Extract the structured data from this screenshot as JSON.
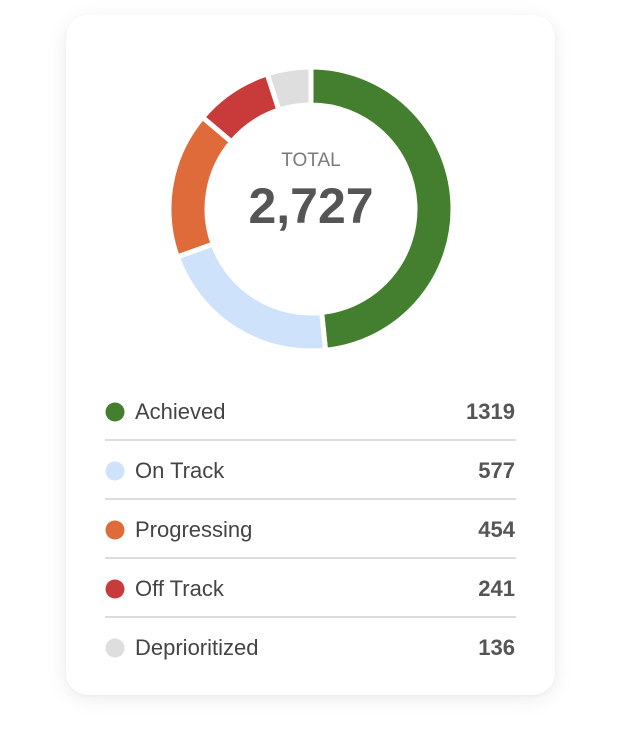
{
  "chart_data": {
    "type": "donut",
    "center_title": "TOTAL",
    "total": {
      "value": 2727,
      "label": "2,727"
    },
    "categories": [
      "Achieved",
      "On Track",
      "Progressing",
      "Off Track",
      "Deprioritized"
    ],
    "values": [
      1319,
      577,
      454,
      241,
      136
    ],
    "colors": [
      "#437f2e",
      "#cfe2fb",
      "#e06b3a",
      "#c93a3a",
      "#dedede"
    ]
  }
}
